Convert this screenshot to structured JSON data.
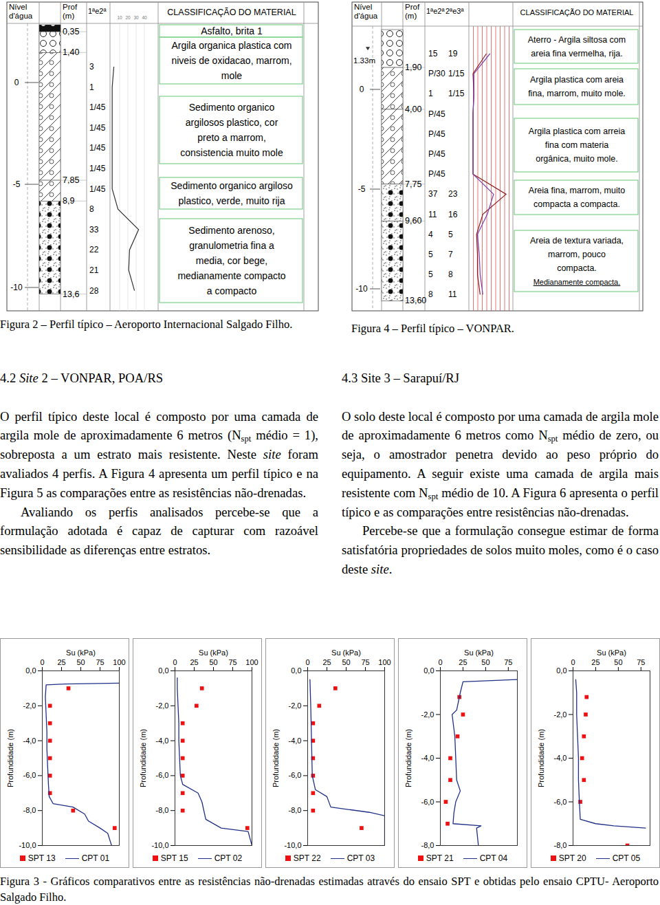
{
  "figure2": {
    "headers": {
      "water": [
        "Nível",
        "d'água"
      ],
      "depth": [
        "Prof",
        "(m)"
      ],
      "blows": [
        "1ªe2ª"
      ],
      "scale": [
        10,
        20,
        30,
        40
      ],
      "classification": "CLASSIFICAÇÃO DO MATERIAL"
    },
    "elevations": [
      "0",
      "-5",
      "-10"
    ],
    "layers": [
      {
        "bottom": 0.35,
        "bottom_label": "0,35",
        "lines": [
          "Asfalto, brita 1"
        ]
      },
      {
        "bottom": 1.4,
        "bottom_label": "1,40",
        "lines": [
          "Argila organica plastica com",
          "niveis de oxidacao, marrom,",
          "mole"
        ]
      },
      {
        "bottom": 7.85,
        "bottom_label": "7,85",
        "lines": [
          "Sedimento organico",
          "argilosos plastico, cor",
          "preto a marrom,",
          "consistencia muito mole"
        ]
      },
      {
        "bottom": 8.9,
        "bottom_label": "8,9",
        "lines": [
          "Sedimento organico argiloso",
          "plastico, verde, muito rija"
        ]
      },
      {
        "bottom": 13.6,
        "bottom_label": "13,6",
        "lines": [
          "Sedimento arenoso,",
          "granulometria fina a",
          "media, cor bege,",
          "medianamente compacto",
          "a compacto"
        ]
      }
    ],
    "blows": [
      [
        "3"
      ],
      [
        "1"
      ],
      [
        "1/45"
      ],
      [
        "1/45"
      ],
      [
        "1/45"
      ],
      [
        "1/45"
      ],
      [
        "1/45"
      ],
      [
        "8"
      ],
      [
        "33"
      ],
      [
        "22"
      ],
      [
        "21"
      ],
      [
        "28"
      ]
    ]
  },
  "figure4": {
    "headers": {
      "water": [
        "Nível",
        "d'água"
      ],
      "depth": [
        "Prof",
        "(m)"
      ],
      "blows": [
        "1ªe2ª",
        "2ªe3ª"
      ],
      "classification": "CLASSIFICAÇÃO DO MATERIAL"
    },
    "water_level": "1.33m",
    "elevations": [
      "0",
      "-5",
      "-10"
    ],
    "layers": [
      {
        "bottom": 1.9,
        "bottom_label": "1,90",
        "lines": [
          "Aterro - Argila siltosa com",
          "areia fina vermelha, rija."
        ]
      },
      {
        "bottom": 4.0,
        "bottom_label": "4,00",
        "lines": [
          "Argila plastica com areia",
          "fina, marrom, muito mole."
        ]
      },
      {
        "bottom": 7.75,
        "bottom_label": "7,75",
        "lines": [
          "Argila plastica com arreia",
          "fina com materia",
          "orgânica, muito mole."
        ]
      },
      {
        "bottom": 9.6,
        "bottom_label": "9,60",
        "lines": [
          "Areia fina, marrom, muito",
          "compacta a compacta."
        ]
      },
      {
        "bottom": 13.6,
        "bottom_label": "13,60",
        "lines": [
          "Areia de textura variada,",
          "marrom, pouco",
          "compacta."
        ],
        "extra": "Medianamente compacta."
      }
    ],
    "blows": [
      [
        "15",
        "19"
      ],
      [
        "P/30",
        "1/15"
      ],
      [
        "1",
        "1/15"
      ],
      [
        "P/45"
      ],
      [
        "P/45"
      ],
      [
        "P/45"
      ],
      [
        "P/45"
      ],
      [
        "37",
        "23"
      ],
      [
        "11",
        "16"
      ],
      [
        "4",
        "5"
      ],
      [
        "5",
        "7"
      ],
      [
        "5",
        "8"
      ],
      [
        "8",
        "11"
      ]
    ]
  },
  "captions": {
    "figure2": "Figura 2 – Perfil típico – Aeroporto Internacional Salgado Filho.",
    "figure4": "Figura 4 – Perfil típico – VONPAR.",
    "figure3": "Figura 3 - Gráficos comparativos entre as resistências não-drenadas estimadas através do ensaio SPT e obtidas pelo ensaio CPTU- Aeroporto Salgado Filho."
  },
  "sections": [
    {
      "heading": [
        "4.2 ",
        {
          "i": "Site"
        },
        " 2 – VONPAR, POA/RS"
      ],
      "paragraphs": [
        [
          "O perfil típico deste local é composto por uma camada de argila mole de aproximadamente 6 metros (N",
          {
            "sub": "spt"
          },
          " médio = 1), sobreposta a um estrato mais resistente. Neste ",
          {
            "i": "site"
          },
          " foram avaliados 4 perfis. A Figura 4 apresenta um perfil típico e na Figura 5 as comparações entre as resistências não-drenadas."
        ],
        [
          "Avaliando os perfis analisados percebe-se que a formulação adotada é capaz de capturar com razoável sensibilidade as diferenças entre estratos."
        ]
      ]
    },
    {
      "heading": [
        "4.3 Site 3 – Sarapuí/RJ"
      ],
      "paragraphs": [
        [
          "O solo deste local é composto por uma camada de argila mole de aproximadamente 6 metros como N",
          {
            "sub": "spt"
          },
          " médio de zero, ou seja, o amostrador penetra devido ao peso próprio do equipamento. A seguir existe uma camada de argila mais resistente com N",
          {
            "sub": "spt"
          },
          " médio de 10. A Figura 6 apresenta o perfil típico e as comparações entre resistências não-drenadas."
        ],
        [
          "Percebe-se que a formulação consegue estimar de forma satisfatória propriedades de solos muito moles, como é o caso deste ",
          {
            "i": "site"
          },
          "."
        ]
      ]
    }
  ],
  "chart_data": [
    {
      "type": "line",
      "x_label": "Su (kPa)",
      "y_label": "Profundidade (m)",
      "xlim": [
        0,
        100
      ],
      "xticks": [
        0,
        25,
        50,
        75,
        100
      ],
      "ylim": [
        -10,
        0
      ],
      "yticks": [
        {
          "value": 0,
          "label": "0,0"
        },
        {
          "value": -2,
          "label": "-2,0"
        },
        {
          "value": -4,
          "label": "-4,0"
        },
        {
          "value": -6,
          "label": "-6,0"
        },
        {
          "value": -8,
          "label": "-8,0"
        },
        {
          "value": -10,
          "label": "-10,0"
        }
      ],
      "series": [
        {
          "name": "SPT 13",
          "type": "scatter",
          "marker": "square",
          "color": "#ee1111",
          "x": [
            34,
            10,
            10,
            10,
            10,
            10,
            10,
            40,
            94
          ],
          "y": [
            -1,
            -2,
            -3,
            -4,
            -5,
            -6,
            -7,
            -8,
            -9
          ]
        },
        {
          "name": "CPT 01",
          "type": "line",
          "color": "#1f2f86",
          "x": [
            100,
            30,
            5,
            4,
            5,
            6,
            6,
            7,
            8,
            9,
            14,
            40,
            55,
            60,
            75,
            85,
            90
          ],
          "y": [
            -0.7,
            -0.75,
            -0.8,
            -1.5,
            -2.5,
            -3.5,
            -4.5,
            -5.5,
            -6.5,
            -7.2,
            -7.6,
            -7.8,
            -8.2,
            -8.6,
            -9.0,
            -9.3,
            -10
          ]
        }
      ]
    },
    {
      "type": "line",
      "x_label": "Su (kPa)",
      "y_label": "Profundidade (m)",
      "xlim": [
        0,
        100
      ],
      "xticks": [
        0,
        25,
        50,
        75,
        100
      ],
      "ylim": [
        -10,
        0
      ],
      "yticks": [
        {
          "value": 0,
          "label": "0,0"
        },
        {
          "value": -2,
          "label": "-2,0"
        },
        {
          "value": -4,
          "label": "-4,0"
        },
        {
          "value": -6,
          "label": "-6,0"
        },
        {
          "value": -8,
          "label": "-8,0"
        },
        {
          "value": -10,
          "label": "-10,0"
        }
      ],
      "series": [
        {
          "name": "SPT 15",
          "type": "scatter",
          "marker": "square",
          "color": "#ee1111",
          "x": [
            35,
            28,
            10,
            10,
            10,
            10,
            10,
            10,
            94
          ],
          "y": [
            -1,
            -2,
            -3,
            -4,
            -5,
            -6,
            -7,
            -8,
            -9
          ]
        },
        {
          "name": "CPT 02",
          "type": "line",
          "color": "#1f2f86",
          "x": [
            3,
            3,
            4,
            5,
            5,
            6,
            7,
            10,
            30,
            35,
            40,
            60,
            95,
            100
          ],
          "y": [
            -0.4,
            -1,
            -2,
            -3,
            -4,
            -5,
            -6,
            -6.5,
            -7,
            -7.5,
            -8.5,
            -9,
            -9.2,
            -10
          ]
        }
      ]
    },
    {
      "type": "line",
      "x_label": "Su (kPa)",
      "y_label": "Profundidade (m)",
      "xlim": [
        0,
        100
      ],
      "xticks": [
        0,
        25,
        50,
        75,
        100
      ],
      "ylim": [
        -10,
        0
      ],
      "yticks": [
        {
          "value": 0,
          "label": "0,0"
        },
        {
          "value": -2,
          "label": "-2,0"
        },
        {
          "value": -4,
          "label": "-4,0"
        },
        {
          "value": -6,
          "label": "-6,0"
        },
        {
          "value": -8,
          "label": "-8,0"
        },
        {
          "value": -10,
          "label": "-10,0"
        }
      ],
      "series": [
        {
          "name": "SPT 22",
          "type": "scatter",
          "marker": "square",
          "color": "#ee1111",
          "x": [
            36,
            15,
            7,
            7,
            7,
            7,
            7,
            7,
            70
          ],
          "y": [
            -1,
            -2,
            -3,
            -4,
            -5,
            -6,
            -7,
            -8,
            -9
          ]
        },
        {
          "name": "CPT 03",
          "type": "line",
          "color": "#1f2f86",
          "x": [
            3,
            4,
            5,
            6,
            10,
            25,
            30,
            80,
            100,
            100
          ],
          "y": [
            -0.5,
            -2,
            -4,
            -6,
            -6.8,
            -7.2,
            -7.8,
            -8.1,
            -8.3,
            -10
          ]
        }
      ]
    },
    {
      "type": "line",
      "x_label": "Su (kPa)",
      "y_label": "Profundidade (m)",
      "xlim": [
        0,
        85
      ],
      "xticks": [
        0,
        25,
        50,
        75
      ],
      "ylim": [
        -8,
        0
      ],
      "yticks": [
        {
          "value": 0,
          "label": "0,0"
        },
        {
          "value": -2,
          "label": "-2,0"
        },
        {
          "value": -4,
          "label": "-4,0"
        },
        {
          "value": -6,
          "label": "-6,0"
        },
        {
          "value": -8,
          "label": "-8,0"
        }
      ],
      "series": [
        {
          "name": "SPT 21",
          "type": "scatter",
          "marker": "square",
          "color": "#ee1111",
          "x": [
            21,
            25,
            19,
            11,
            11,
            6,
            8
          ],
          "y": [
            -1.2,
            -2,
            -3,
            -4,
            -5,
            -6,
            -7
          ]
        },
        {
          "name": "CPT 04",
          "type": "line",
          "color": "#1f2f86",
          "x": [
            85,
            25,
            22,
            18,
            13,
            16,
            17,
            18,
            22,
            17,
            15,
            14,
            45,
            40,
            42
          ],
          "y": [
            -0.4,
            -0.5,
            -1,
            -1.8,
            -2.0,
            -3,
            -4,
            -5,
            -5.5,
            -6,
            -6.5,
            -7,
            -7.1,
            -7.2,
            -8
          ]
        }
      ]
    },
    {
      "type": "line",
      "x_label": "Su (kPa)",
      "y_label": "Profundidade (m)",
      "xlim": [
        0,
        85
      ],
      "xticks": [
        0,
        25,
        50,
        75
      ],
      "ylim": [
        -8,
        0
      ],
      "yticks": [
        {
          "value": 0,
          "label": "0,0"
        },
        {
          "value": -2,
          "label": "-2,0"
        },
        {
          "value": -4,
          "label": "-4,0"
        },
        {
          "value": -6,
          "label": "-6,0"
        },
        {
          "value": -8,
          "label": "-8,0"
        }
      ],
      "series": [
        {
          "name": "SPT 20",
          "type": "scatter",
          "marker": "square",
          "color": "#ee1111",
          "x": [
            15,
            14,
            12,
            10,
            12,
            8,
            60
          ],
          "y": [
            -1.2,
            -2,
            -3,
            -4,
            -5,
            -6,
            -8
          ]
        },
        {
          "name": "CPT 05",
          "type": "line",
          "color": "#1f2f86",
          "x": [
            3,
            4,
            4,
            5,
            6,
            6,
            7,
            8,
            25,
            45,
            80
          ],
          "y": [
            -0.4,
            -1,
            -2,
            -3,
            -4,
            -5,
            -6,
            -6.8,
            -7.0,
            -7.1,
            -7.2
          ]
        }
      ]
    }
  ]
}
